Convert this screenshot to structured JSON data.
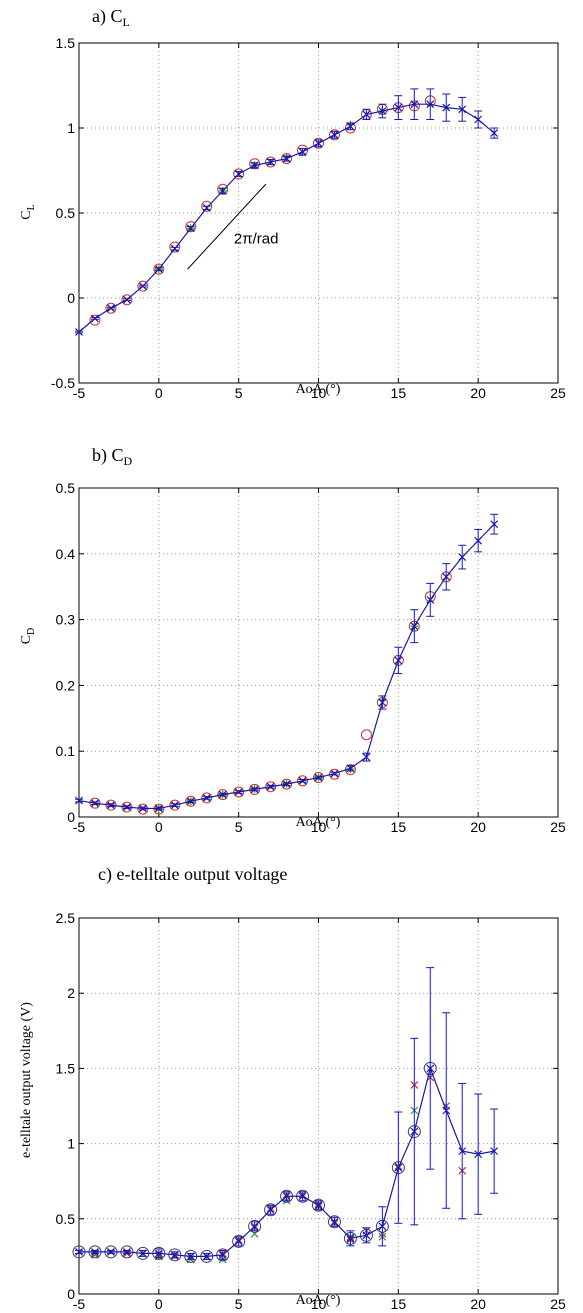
{
  "chart_data": [
    {
      "type": "line",
      "title": "a) C",
      "title_sub": "L",
      "xlabel": "AoA (°)",
      "ylabel": "C",
      "ylabel_sub": "L",
      "xlim": [
        -5,
        25
      ],
      "ylim": [
        -0.5,
        1.5
      ],
      "xticks": [
        -5,
        0,
        5,
        10,
        15,
        20,
        25
      ],
      "yticks": [
        -0.5,
        0,
        0.5,
        1,
        1.5
      ],
      "ytick_labels": [
        "-0.5",
        "0",
        "0.5",
        "1",
        "1.5"
      ],
      "grid": true,
      "annotation": {
        "text": "2π/rad",
        "x": 4.7,
        "y": 0.32,
        "line": [
          [
            1.8,
            0.17
          ],
          [
            6.7,
            0.67
          ]
        ]
      },
      "series": [
        {
          "x": [
            -5,
            -4,
            -3,
            -2,
            -1,
            0,
            1,
            2,
            3,
            4,
            5,
            6,
            7,
            8,
            9,
            10,
            11,
            12,
            13,
            14,
            15,
            16,
            17,
            18,
            19,
            20,
            21
          ],
          "y": [
            -0.2,
            -0.12,
            -0.06,
            -0.01,
            0.07,
            0.17,
            0.29,
            0.41,
            0.53,
            0.63,
            0.73,
            0.78,
            0.8,
            0.82,
            0.86,
            0.91,
            0.96,
            1.01,
            1.08,
            1.1,
            1.12,
            1.14,
            1.14,
            1.12,
            1.11,
            1.05,
            0.97
          ],
          "err": [
            0.005,
            0.005,
            0.005,
            0.005,
            0.005,
            0.008,
            0.008,
            0.01,
            0.01,
            0.015,
            0.015,
            0.015,
            0.015,
            0.015,
            0.02,
            0.02,
            0.02,
            0.02,
            0.03,
            0.04,
            0.07,
            0.09,
            0.09,
            0.08,
            0.07,
            0.05,
            0.03
          ]
        },
        {
          "x": [
            -4,
            -3,
            -2,
            -1,
            0,
            1,
            2,
            3,
            4,
            5,
            6,
            7,
            8,
            9,
            10,
            11,
            12,
            13,
            14,
            15,
            16,
            17
          ],
          "y": [
            -0.13,
            -0.06,
            -0.01,
            0.07,
            0.17,
            0.3,
            0.42,
            0.54,
            0.64,
            0.73,
            0.79,
            0.8,
            0.82,
            0.87,
            0.91,
            0.96,
            1.0,
            1.08,
            1.11,
            1.12,
            1.13,
            1.16
          ]
        },
        {
          "x": [
            0,
            2,
            4,
            6,
            8,
            12,
            14
          ],
          "y": [
            0.17,
            0.41,
            0.63,
            0.78,
            0.83,
            1.02,
            1.1
          ]
        }
      ]
    },
    {
      "type": "line",
      "title": "b) C",
      "title_sub": "D",
      "xlabel": "AoA (°)",
      "ylabel": "C",
      "ylabel_sub": "D",
      "xlim": [
        -5,
        25
      ],
      "ylim": [
        0,
        0.5
      ],
      "xticks": [
        -5,
        0,
        5,
        10,
        15,
        20,
        25
      ],
      "yticks": [
        0,
        0.1,
        0.2,
        0.3,
        0.4,
        0.5
      ],
      "ytick_labels": [
        "0",
        "0.1",
        "0.2",
        "0.3",
        "0.4",
        "0.5"
      ],
      "grid": true,
      "series": [
        {
          "x": [
            -5,
            -4,
            -3,
            -2,
            -1,
            0,
            1,
            2,
            3,
            4,
            5,
            6,
            7,
            8,
            9,
            10,
            11,
            12,
            13,
            14,
            15,
            16,
            17,
            18,
            19,
            20,
            21
          ],
          "y": [
            0.025,
            0.021,
            0.018,
            0.015,
            0.013,
            0.013,
            0.018,
            0.024,
            0.029,
            0.034,
            0.038,
            0.042,
            0.046,
            0.05,
            0.055,
            0.06,
            0.066,
            0.074,
            0.091,
            0.174,
            0.238,
            0.29,
            0.33,
            0.365,
            0.395,
            0.42,
            0.445
          ],
          "err": [
            0.002,
            0.002,
            0.002,
            0.002,
            0.002,
            0.002,
            0.002,
            0.002,
            0.002,
            0.002,
            0.002,
            0.002,
            0.002,
            0.002,
            0.002,
            0.002,
            0.002,
            0.004,
            0.006,
            0.01,
            0.02,
            0.025,
            0.025,
            0.02,
            0.018,
            0.017,
            0.015
          ]
        },
        {
          "x": [
            -4,
            -3,
            -2,
            -1,
            0,
            1,
            2,
            3,
            4,
            5,
            6,
            7,
            8,
            9,
            10,
            11,
            12,
            13,
            14,
            15,
            16,
            17,
            18
          ],
          "y": [
            0.021,
            0.018,
            0.015,
            0.012,
            0.012,
            0.018,
            0.024,
            0.029,
            0.034,
            0.038,
            0.042,
            0.046,
            0.05,
            0.055,
            0.06,
            0.065,
            0.072,
            0.125,
            0.174,
            0.238,
            0.29,
            0.335,
            0.365
          ]
        },
        {
          "x": [
            0,
            2,
            4,
            6,
            8,
            10,
            12,
            14,
            16
          ],
          "y": [
            0.012,
            0.024,
            0.034,
            0.043,
            0.051,
            0.06,
            0.073,
            0.178,
            0.29
          ]
        }
      ]
    },
    {
      "type": "line",
      "title": "c) e-telltale output voltage",
      "xlabel": "AoA (°)",
      "ylabel": "e-telltale output voltage (V)",
      "xlim": [
        -5,
        25
      ],
      "ylim": [
        0,
        2.5
      ],
      "xticks": [
        -5,
        0,
        5,
        10,
        15,
        20,
        25
      ],
      "yticks": [
        0,
        0.5,
        1,
        1.5,
        2,
        2.5
      ],
      "ytick_labels": [
        "0",
        "0.5",
        "1",
        "1.5",
        "2",
        "2.5"
      ],
      "grid": true,
      "series": [
        {
          "x": [
            -5,
            -4,
            -3,
            -2,
            -1,
            0,
            1,
            2,
            3,
            4,
            5,
            6,
            7,
            8,
            9,
            10,
            11,
            12,
            13,
            14,
            15,
            16,
            17,
            18,
            19,
            20,
            21
          ],
          "y": [
            0.28,
            0.28,
            0.28,
            0.28,
            0.27,
            0.27,
            0.26,
            0.25,
            0.25,
            0.26,
            0.35,
            0.45,
            0.56,
            0.65,
            0.65,
            0.59,
            0.48,
            0.37,
            0.39,
            0.45,
            0.84,
            1.08,
            1.5,
            1.22,
            0.95,
            0.93,
            0.95
          ],
          "err": [
            0.01,
            0.01,
            0.01,
            0.01,
            0.02,
            0.03,
            0.02,
            0.02,
            0.02,
            0.03,
            0.03,
            0.03,
            0.03,
            0.03,
            0.03,
            0.03,
            0.03,
            0.05,
            0.05,
            0.13,
            0.37,
            0.62,
            0.67,
            0.65,
            0.45,
            0.4,
            0.28
          ]
        },
        {
          "x": [
            -4,
            -3,
            -2,
            -1,
            0,
            1,
            2,
            3,
            4,
            5,
            6,
            7,
            8,
            9,
            10,
            11,
            12,
            13,
            14,
            15,
            16,
            17,
            18,
            19
          ],
          "y": [
            0.27,
            0.28,
            0.27,
            0.27,
            0.26,
            0.25,
            0.25,
            0.25,
            0.27,
            0.36,
            0.44,
            0.57,
            0.66,
            0.66,
            0.6,
            0.47,
            0.36,
            0.42,
            0.4,
            0.85,
            1.39,
            1.44,
            1.25,
            0.82
          ]
        },
        {
          "x": [
            -4,
            -2,
            0,
            2,
            4,
            6,
            8,
            10,
            12,
            14,
            16
          ],
          "y": [
            0.26,
            0.27,
            0.25,
            0.23,
            0.23,
            0.4,
            0.62,
            0.58,
            0.38,
            0.38,
            1.22
          ]
        }
      ]
    }
  ],
  "colors": {
    "series": [
      "#1a1aa8",
      "#d03030",
      "#2a9e2a"
    ],
    "grid": "#9a9a9a"
  }
}
